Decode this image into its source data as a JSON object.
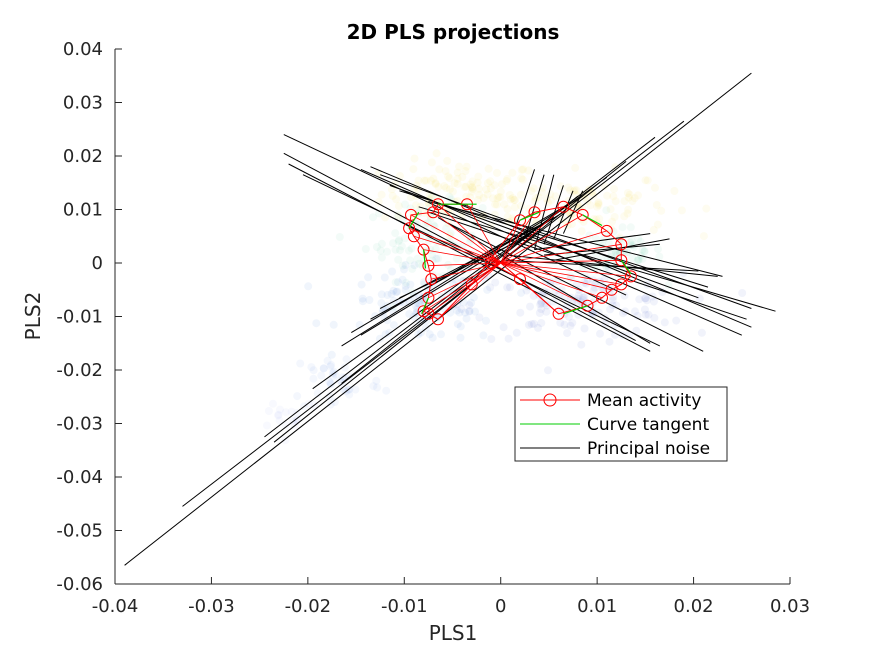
{
  "chart_data": {
    "type": "scatter",
    "title": "2D PLS projections",
    "xlabel": "PLS1",
    "ylabel": "PLS2",
    "xlim": [
      -0.04,
      0.03
    ],
    "ylim": [
      -0.06,
      0.04
    ],
    "xticks": [
      -0.04,
      -0.03,
      -0.02,
      -0.01,
      0,
      0.01,
      0.02,
      0.03
    ],
    "xtick_labels": [
      "-0.04",
      "-0.03",
      "-0.02",
      "-0.01",
      "0",
      "0.01",
      "0.02",
      "0.03"
    ],
    "yticks": [
      0.04,
      0.03,
      0.02,
      0.01,
      0,
      -0.01,
      -0.02,
      -0.03,
      -0.04,
      -0.05,
      -0.06
    ],
    "ytick_labels": [
      "0.04",
      "0.03",
      "0.02",
      "0.01",
      "0",
      "-0.01",
      "-0.02",
      "-0.03",
      "-0.04",
      "-0.05",
      "-0.06"
    ],
    "grid": false,
    "legend_position": "lower-right",
    "colors": {
      "mean_activity": "#ff0000",
      "curve_tangent": "#00cc00",
      "principal_noise": "#000000",
      "cloud": [
        "#f2d21f",
        "#2fb3a0",
        "#2f6bd8",
        "#5454cc"
      ]
    },
    "legend": [
      {
        "label": "Mean activity",
        "style": "red-line-circle"
      },
      {
        "label": "Curve tangent",
        "style": "green-line"
      },
      {
        "label": "Principal noise",
        "style": "black-line"
      }
    ],
    "cloud_regions": [
      {
        "color": "#f5d51b",
        "cx": -0.004,
        "cy": 0.013,
        "rx": 0.007,
        "ry": 0.005,
        "n": 120
      },
      {
        "color": "#f0d22a",
        "cx": 0.008,
        "cy": 0.011,
        "rx": 0.008,
        "ry": 0.005,
        "n": 110
      },
      {
        "color": "#4fc3a1",
        "cx": -0.008,
        "cy": 0.004,
        "rx": 0.005,
        "ry": 0.006,
        "n": 80
      },
      {
        "color": "#4fc3a1",
        "cx": 0.012,
        "cy": 0.002,
        "rx": 0.004,
        "ry": 0.004,
        "n": 60
      },
      {
        "color": "#2a78d8",
        "cx": -0.008,
        "cy": -0.008,
        "rx": 0.007,
        "ry": 0.006,
        "n": 110
      },
      {
        "color": "#3b5ccc",
        "cx": 0.008,
        "cy": -0.008,
        "rx": 0.009,
        "ry": 0.005,
        "n": 130
      },
      {
        "color": "#6688e6",
        "cx": -0.017,
        "cy": -0.022,
        "rx": 0.004,
        "ry": 0.005,
        "n": 40
      },
      {
        "color": "#9ab0ee",
        "cx": -0.022,
        "cy": -0.028,
        "rx": 0.003,
        "ry": 0.003,
        "n": 18
      }
    ],
    "mean_activity": [
      [
        -0.0035,
        0.011
      ],
      [
        -0.0065,
        0.011
      ],
      [
        -0.007,
        0.0095
      ],
      [
        -0.0093,
        0.009
      ],
      [
        -0.0095,
        0.0065
      ],
      [
        -0.009,
        0.005
      ],
      [
        -0.008,
        0.0025
      ],
      [
        -0.0075,
        -0.0005
      ],
      [
        -0.0072,
        -0.003
      ],
      [
        -0.0075,
        -0.0065
      ],
      [
        -0.008,
        -0.009
      ],
      [
        -0.0075,
        -0.0095
      ],
      [
        -0.0065,
        -0.0105
      ],
      [
        -0.003,
        -0.004
      ],
      [
        0.002,
        0.008
      ],
      [
        0.0035,
        0.0095
      ],
      [
        0.0065,
        0.0105
      ],
      [
        0.0085,
        0.009
      ],
      [
        0.011,
        0.006
      ],
      [
        0.0125,
        0.0035
      ],
      [
        0.0125,
        0.0005
      ],
      [
        0.0135,
        -0.0025
      ],
      [
        0.0125,
        -0.004
      ],
      [
        0.0115,
        -0.005
      ],
      [
        0.0105,
        -0.0065
      ],
      [
        0.009,
        -0.008
      ],
      [
        0.006,
        -0.0095
      ],
      [
        0.002,
        -0.003
      ],
      [
        -0.001,
        0.0
      ]
    ],
    "tangents": [
      [
        [
          -0.0065,
          0.011
        ],
        [
          -0.0025,
          0.011
        ]
      ],
      [
        [
          -0.0095,
          0.0065
        ],
        [
          -0.0085,
          0.0095
        ]
      ],
      [
        [
          -0.008,
          0.0025
        ],
        [
          -0.0078,
          -0.001
        ]
      ],
      [
        [
          -0.0075,
          -0.0065
        ],
        [
          -0.0082,
          -0.0095
        ]
      ],
      [
        [
          0.002,
          0.008
        ],
        [
          0.004,
          0.0095
        ]
      ],
      [
        [
          0.0085,
          0.009
        ],
        [
          0.0105,
          0.007
        ]
      ],
      [
        [
          0.0125,
          0.0005
        ],
        [
          0.0135,
          -0.002
        ]
      ],
      [
        [
          0.009,
          -0.008
        ],
        [
          0.0065,
          -0.0095
        ]
      ]
    ],
    "noise_segments": [
      [
        [
          -0.039,
          -0.0565
        ],
        [
          0.026,
          0.0355
        ]
      ],
      [
        [
          -0.033,
          -0.0455
        ],
        [
          0.019,
          0.0265
        ]
      ],
      [
        [
          -0.0245,
          -0.0325
        ],
        [
          0.016,
          0.0235
        ]
      ],
      [
        [
          -0.0235,
          -0.0335
        ],
        [
          0.013,
          0.019
        ]
      ],
      [
        [
          -0.0195,
          -0.0235
        ],
        [
          0.011,
          0.016
        ]
      ],
      [
        [
          -0.0165,
          -0.0225
        ],
        [
          0.008,
          0.0125
        ]
      ],
      [
        [
          -0.0165,
          -0.0155
        ],
        [
          0.0085,
          0.0125
        ]
      ],
      [
        [
          -0.0155,
          -0.013
        ],
        [
          0.007,
          0.011
        ]
      ],
      [
        [
          -0.0145,
          -0.0135
        ],
        [
          0.0065,
          0.0095
        ]
      ],
      [
        [
          -0.0135,
          -0.0105
        ],
        [
          0.0055,
          0.0085
        ]
      ],
      [
        [
          -0.0125,
          -0.0085
        ],
        [
          0.0045,
          0.0075
        ]
      ],
      [
        [
          -0.0105,
          -0.0065
        ],
        [
          0.0035,
          0.0055
        ]
      ],
      [
        [
          -0.0225,
          0.024
        ],
        [
          0.013,
          -0.006
        ]
      ],
      [
        [
          -0.0225,
          0.0205
        ],
        [
          0.014,
          -0.0145
        ]
      ],
      [
        [
          -0.022,
          0.0185
        ],
        [
          0.0155,
          -0.0165
        ]
      ],
      [
        [
          -0.0205,
          0.0165
        ],
        [
          0.0165,
          -0.0155
        ]
      ],
      [
        [
          -0.0145,
          0.0175
        ],
        [
          0.025,
          -0.0135
        ]
      ],
      [
        [
          -0.0135,
          0.018
        ],
        [
          0.026,
          -0.012
        ]
      ],
      [
        [
          -0.0125,
          0.0165
        ],
        [
          0.026,
          -0.0085
        ]
      ],
      [
        [
          -0.0115,
          0.0145
        ],
        [
          0.0205,
          -0.0065
        ]
      ],
      [
        [
          -0.0105,
          0.0135
        ],
        [
          0.0215,
          -0.0045
        ]
      ],
      [
        [
          -0.0075,
          0.0115
        ],
        [
          0.023,
          -0.0025
        ]
      ],
      [
        [
          -0.0085,
          0.0105
        ],
        [
          0.0285,
          -0.009
        ]
      ],
      [
        [
          -0.0075,
          0.0095
        ],
        [
          0.0255,
          -0.0105
        ]
      ],
      [
        [
          -0.0065,
          0.0085
        ],
        [
          0.0155,
          -0.015
        ]
      ],
      [
        [
          -0.0055,
          0.0075
        ],
        [
          0.021,
          -0.0165
        ]
      ],
      [
        [
          0.0015,
          0.0065
        ],
        [
          0.0035,
          0.0175
        ]
      ],
      [
        [
          0.0025,
          0.0045
        ],
        [
          0.0045,
          0.0165
        ]
      ],
      [
        [
          0.0035,
          0.0025
        ],
        [
          0.0055,
          0.0165
        ]
      ],
      [
        [
          0.0045,
          0.0035
        ],
        [
          0.0065,
          0.0145
        ]
      ],
      [
        [
          0.0055,
          0.0045
        ],
        [
          0.0075,
          0.0135
        ]
      ],
      [
        [
          0.0065,
          0.0055
        ],
        [
          0.0085,
          0.0135
        ]
      ],
      [
        [
          0.0035,
          0.0025
        ],
        [
          0.0155,
          0.0055
        ]
      ],
      [
        [
          0.0045,
          0.0015
        ],
        [
          0.0165,
          0.0035
        ]
      ],
      [
        [
          0.0055,
          0.0005
        ],
        [
          0.0175,
          0.0045
        ]
      ],
      [
        [
          0.0005,
          0.0005
        ],
        [
          0.0205,
          -0.0015
        ]
      ],
      [
        [
          0.0005,
          0.0015
        ],
        [
          0.0225,
          -0.0025
        ]
      ]
    ]
  }
}
